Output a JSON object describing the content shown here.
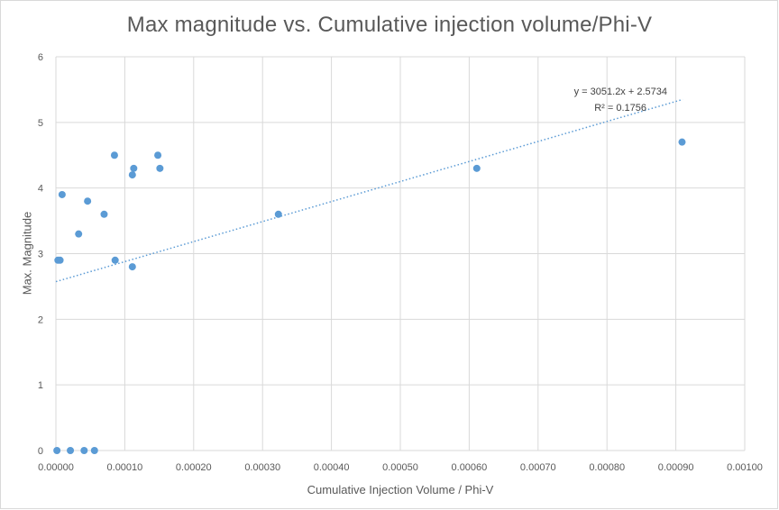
{
  "chart_data": {
    "type": "scatter",
    "title": "Max magnitude vs. Cumulative injection volume/Phi-V",
    "xlabel": "Cumulative Injection Volume / Phi-V",
    "ylabel": "Max. Magnitude",
    "xlim": [
      0,
      0.001
    ],
    "ylim": [
      0,
      6
    ],
    "x_ticks": [
      "0.00000",
      "0.00010",
      "0.00020",
      "0.00030",
      "0.00040",
      "0.00050",
      "0.00060",
      "0.00070",
      "0.00080",
      "0.00090",
      "0.00100"
    ],
    "y_ticks": [
      "0",
      "1",
      "2",
      "3",
      "4",
      "5",
      "6"
    ],
    "grid": true,
    "marker_color": "#5b9bd5",
    "trendline_color": "#5b9bd5",
    "grid_color": "#d9d9d9",
    "points": [
      {
        "x": 1.5e-06,
        "y": 0
      },
      {
        "x": 2.1e-05,
        "y": 0
      },
      {
        "x": 4.1e-05,
        "y": 0
      },
      {
        "x": 5.6e-05,
        "y": 0
      },
      {
        "x": 3e-06,
        "y": 2.9
      },
      {
        "x": 6e-06,
        "y": 2.9
      },
      {
        "x": 9e-06,
        "y": 3.9
      },
      {
        "x": 3.3e-05,
        "y": 3.3
      },
      {
        "x": 4.6e-05,
        "y": 3.8
      },
      {
        "x": 7e-05,
        "y": 3.6
      },
      {
        "x": 8.5e-05,
        "y": 4.5
      },
      {
        "x": 8.6e-05,
        "y": 2.9
      },
      {
        "x": 0.000111,
        "y": 4.2
      },
      {
        "x": 0.000113,
        "y": 4.3
      },
      {
        "x": 0.000111,
        "y": 2.8
      },
      {
        "x": 0.000148,
        "y": 4.5
      },
      {
        "x": 0.000151,
        "y": 4.3
      },
      {
        "x": 0.000323,
        "y": 3.6
      },
      {
        "x": 0.000611,
        "y": 4.3
      },
      {
        "x": 0.000909,
        "y": 4.7
      }
    ],
    "trendline": {
      "type": "linear",
      "slope": 3051.2,
      "intercept": 2.5734,
      "x_range": [
        0,
        0.00091
      ],
      "equation": "y = 3051.2x + 2.5734",
      "r_squared": "R² = 0.1756"
    }
  }
}
